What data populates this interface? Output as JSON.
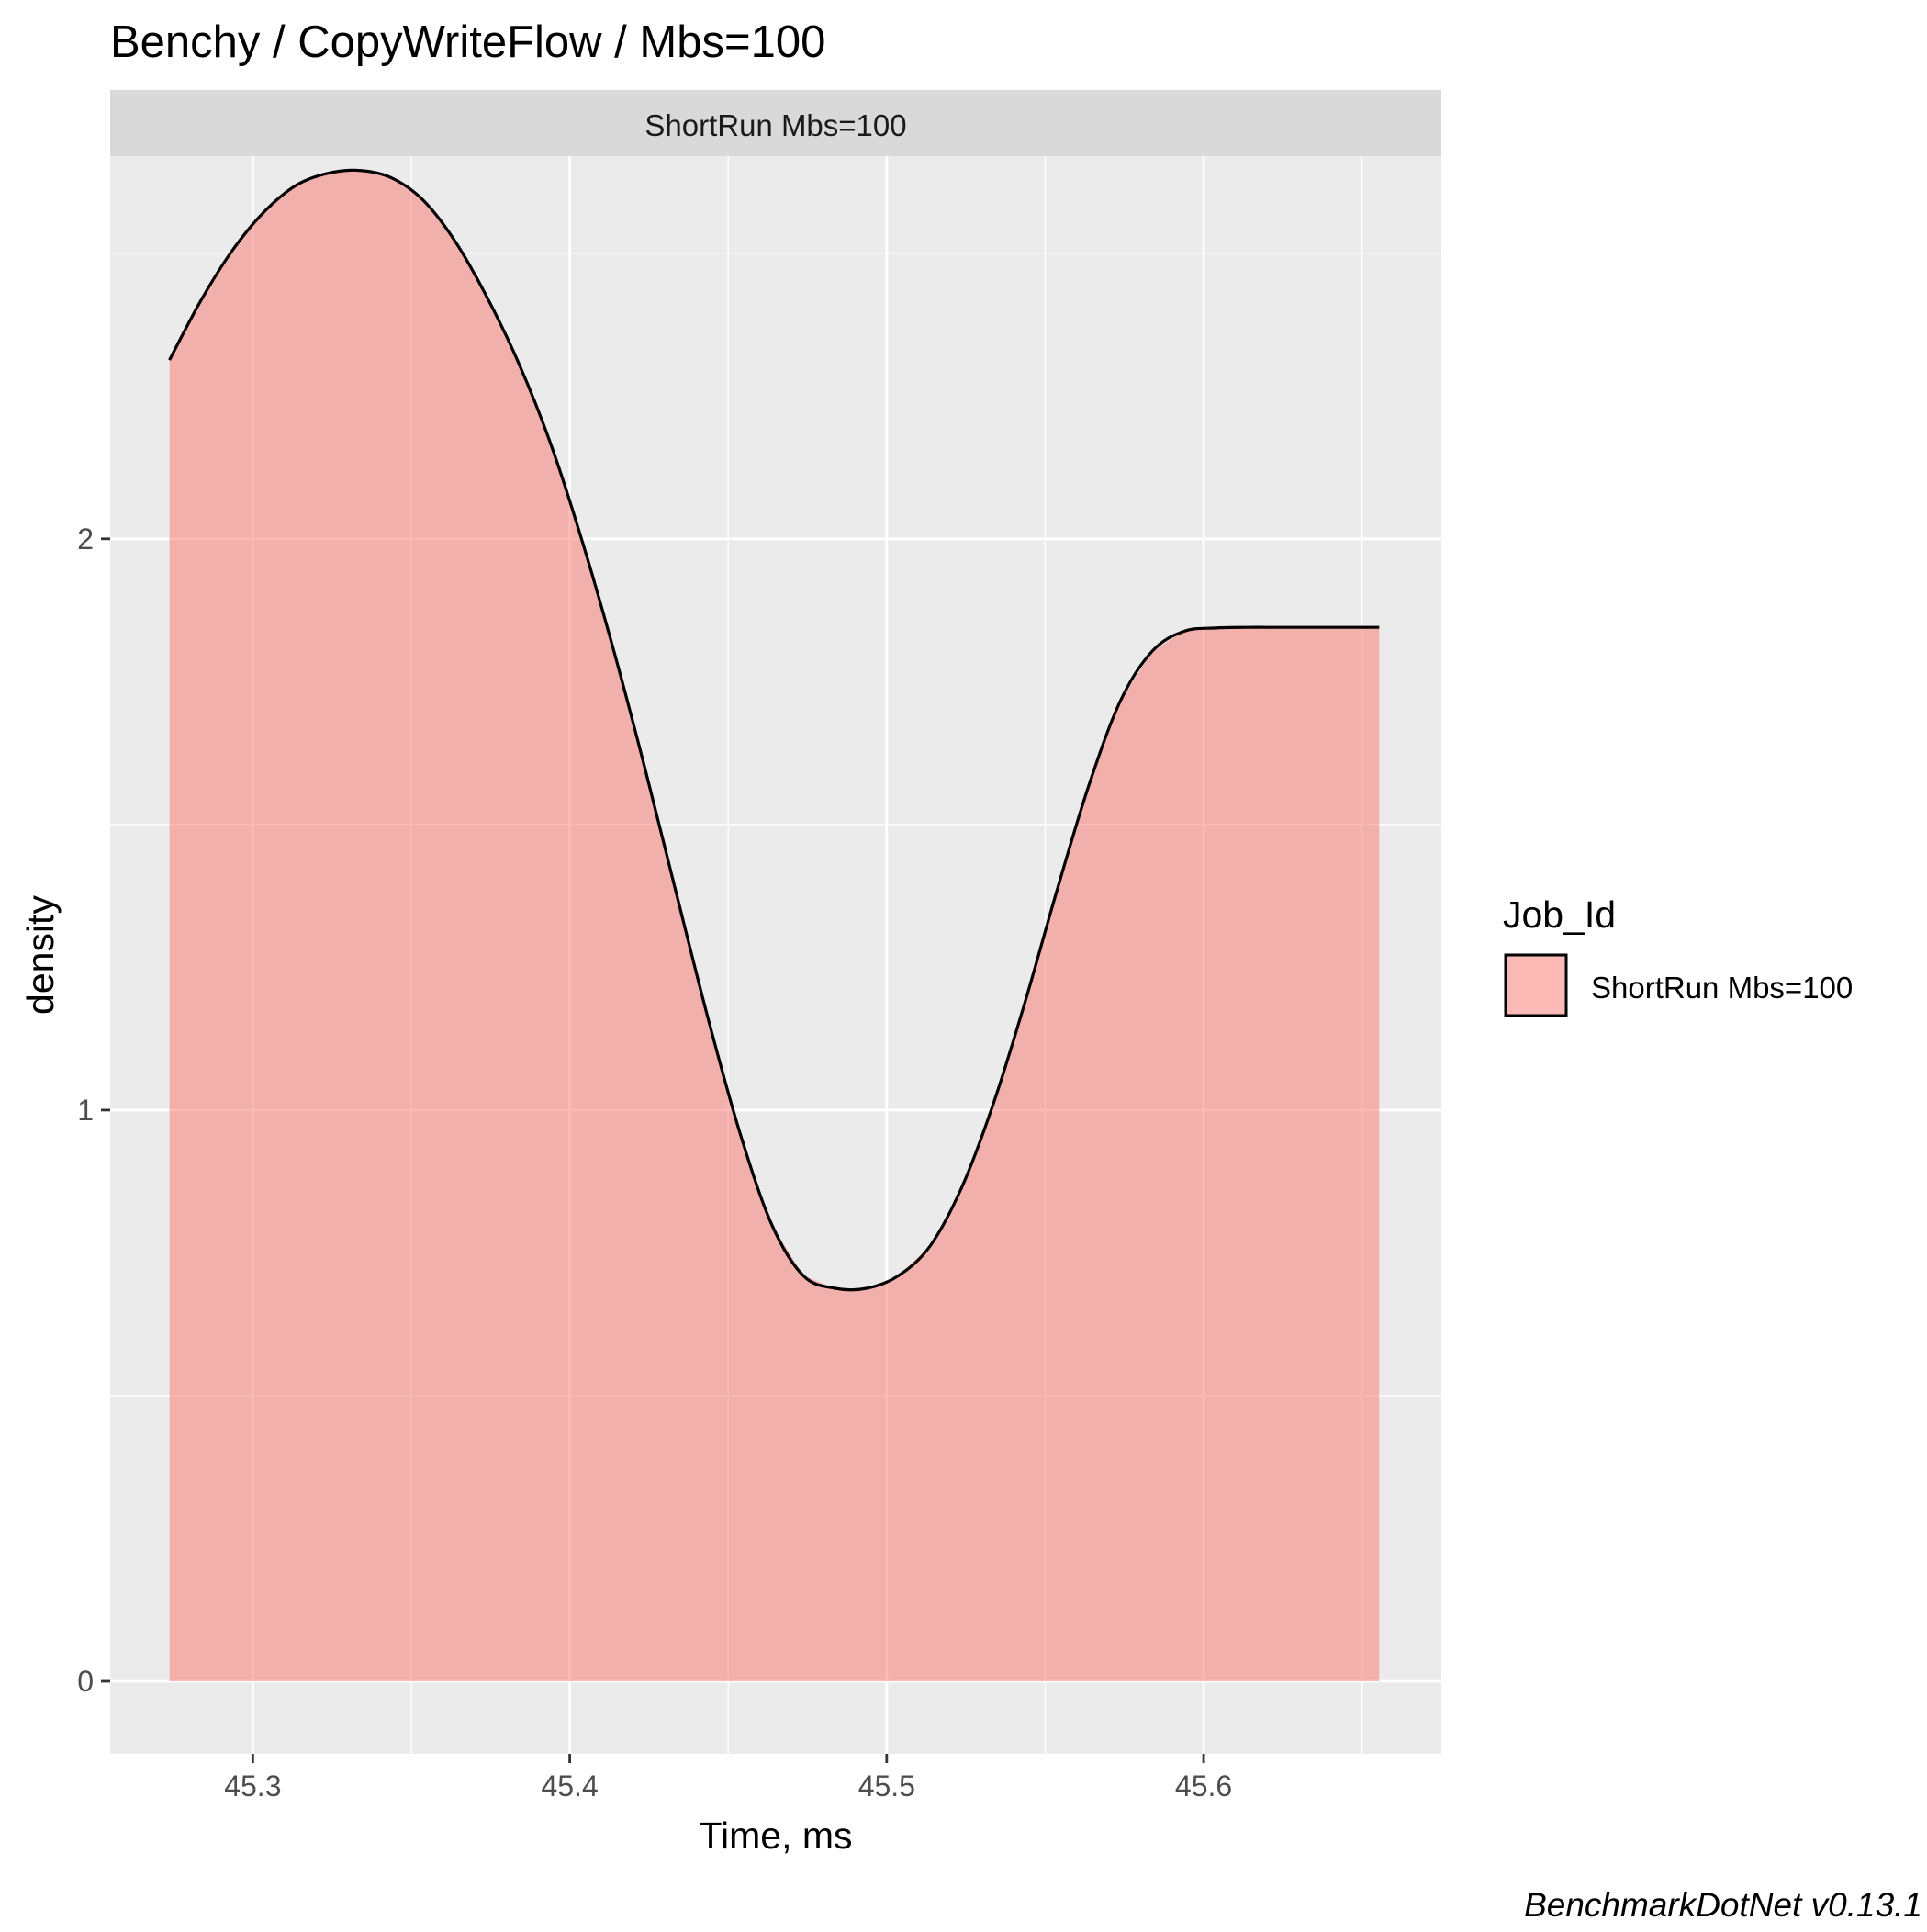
{
  "chart_data": {
    "type": "area",
    "title": "Benchy / CopyWriteFlow / Mbs=100",
    "facet_label": "ShortRun Mbs=100",
    "xlabel": "Time, ms",
    "ylabel": "density",
    "xlim": [
      45.255,
      45.675
    ],
    "ylim": [
      -0.127,
      2.67
    ],
    "x_ticks": [
      45.3,
      45.4,
      45.5,
      45.6
    ],
    "x_tick_labels": [
      "45.3",
      "45.4",
      "45.5",
      "45.6"
    ],
    "x_minor_ticks": [
      45.35,
      45.45,
      45.55,
      45.65
    ],
    "y_ticks": [
      0,
      1,
      2
    ],
    "y_tick_labels": [
      "0",
      "1",
      "2"
    ],
    "y_minor_ticks": [
      0.5,
      1.5,
      2.5
    ],
    "grid": true,
    "legend": {
      "title": "Job_Id",
      "position": "right",
      "entries": [
        "ShortRun Mbs=100"
      ]
    },
    "caption": "BenchmarkDotNet v0.13.1",
    "colors": {
      "fill": "#f8766d",
      "fill_opacity": 0.5,
      "line": "#000000",
      "panel": "#ebebeb",
      "strip": "#d9d9d9",
      "grid": "#ffffff"
    },
    "series": [
      {
        "name": "ShortRun Mbs=100",
        "x": [
          45.2737,
          45.2837,
          45.2937,
          45.3037,
          45.3137,
          45.3237,
          45.3337,
          45.3437,
          45.3537,
          45.3637,
          45.3737,
          45.3837,
          45.3937,
          45.4037,
          45.4137,
          45.4237,
          45.4337,
          45.4437,
          45.4537,
          45.4637,
          45.4737,
          45.4837,
          45.4937,
          45.5037,
          45.5137,
          45.5237,
          45.5337,
          45.5437,
          45.5537,
          45.5637,
          45.5737,
          45.5837,
          45.5937,
          45.6037,
          45.6137,
          45.6237,
          45.6337,
          45.6437,
          45.6537,
          45.6554
        ],
        "y": [
          2.313,
          2.418,
          2.506,
          2.573,
          2.619,
          2.64,
          2.645,
          2.632,
          2.593,
          2.522,
          2.425,
          2.31,
          2.171,
          2.0,
          1.808,
          1.599,
          1.378,
          1.159,
          0.96,
          0.8,
          0.71,
          0.688,
          0.688,
          0.71,
          0.762,
          0.865,
          1.012,
          1.19,
          1.384,
          1.567,
          1.716,
          1.803,
          1.838,
          1.844,
          1.845,
          1.845,
          1.845,
          1.845,
          1.845,
          1.845
        ]
      }
    ]
  }
}
